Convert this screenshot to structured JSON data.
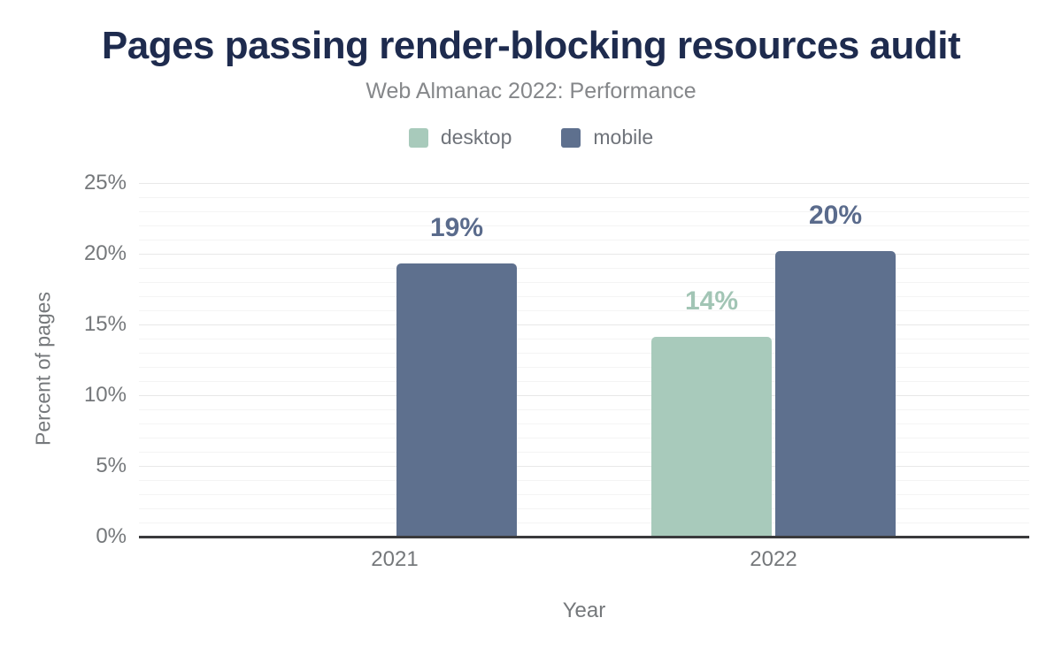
{
  "chart_data": {
    "type": "bar",
    "title": "Pages passing render-blocking resources audit",
    "subtitle": "Web Almanac 2022: Performance",
    "xlabel": "Year",
    "ylabel": "Percent of pages",
    "categories": [
      "2021",
      "2022"
    ],
    "series": [
      {
        "name": "desktop",
        "color": "#a8cabb",
        "label_color": "#a2c5b5",
        "values": [
          null,
          14.1
        ],
        "value_labels": [
          "",
          "14%"
        ]
      },
      {
        "name": "mobile",
        "color": "#5e708e",
        "label_color": "#5a6b8c",
        "values": [
          19.3,
          20.2
        ],
        "value_labels": [
          "19%",
          "20%"
        ]
      }
    ],
    "ylim": [
      0,
      25
    ],
    "y_ticks": [
      "0%",
      "5%",
      "10%",
      "15%",
      "20%",
      "25%"
    ],
    "grid": {
      "orientation": "horizontal",
      "major_step_pct": 5,
      "minor_step_pct": 1
    },
    "legend_position": "top",
    "colors": {
      "title": "#1e2b4e",
      "axis_line": "#3a3a3c",
      "tick_text": "#75787b"
    }
  }
}
